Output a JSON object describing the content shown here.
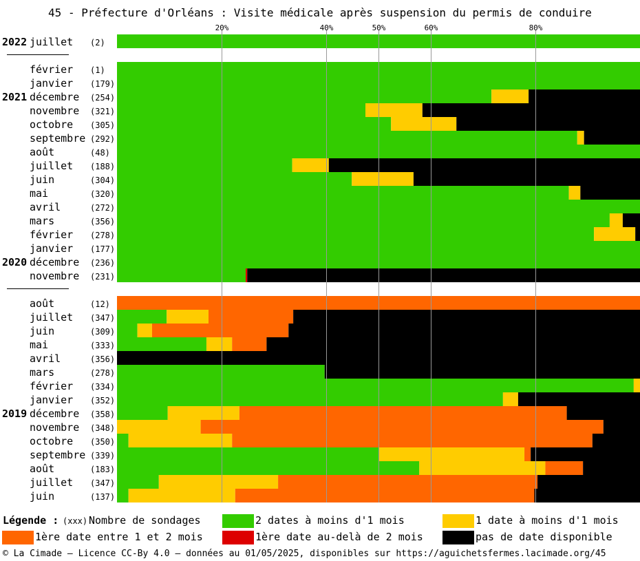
{
  "colors": {
    "green": "#33cc00",
    "yellow": "#ffcc00",
    "orange": "#ff6600",
    "red": "#dd0000",
    "black": "#000000",
    "grid": "#999999"
  },
  "legend": {
    "title": "Légende :",
    "count_hint": "(xxx)",
    "count_label": "Nombre de sondages",
    "items": [
      {
        "key": "green",
        "label": "2 dates à moins d'1 mois"
      },
      {
        "key": "yellow",
        "label": "1 date à moins d'1 mois"
      },
      {
        "key": "orange",
        "label": "1ère date entre 1 et 2 mois"
      },
      {
        "key": "red",
        "label": "1ère date au-delà de 2 mois"
      },
      {
        "key": "black",
        "label": "pas de date disponible"
      }
    ]
  },
  "footer": "© La Cimade — Licence CC-By 4.0 — données au 01/05/2025, disponibles sur https://aguichetsfermes.lacimade.org/45",
  "chart_data": {
    "type": "bar",
    "orientation": "horizontal",
    "stacked": true,
    "unit": "percent",
    "title": "45 - Préfecture d'Orléans : Visite médicale après suspension du permis de conduire",
    "x_ticks": [
      20,
      40,
      50,
      60,
      80
    ],
    "xlim": [
      0,
      100
    ],
    "segment_order": [
      "green",
      "yellow",
      "orange",
      "red",
      "black"
    ],
    "rows": [
      {
        "year": "2022",
        "month": "juillet",
        "count": 2,
        "green": 100,
        "yellow": 0,
        "orange": 0,
        "red": 0,
        "black": 0
      },
      {
        "separator": true
      },
      {
        "month": "février",
        "count": 1,
        "green": 100,
        "yellow": 0,
        "orange": 0,
        "red": 0,
        "black": 0
      },
      {
        "month": "janvier",
        "count": 179,
        "green": 100,
        "yellow": 0,
        "orange": 0,
        "red": 0,
        "black": 0
      },
      {
        "year": "2021",
        "month": "décembre",
        "count": 254,
        "green": 71.6,
        "yellow": 7.1,
        "orange": 0,
        "red": 0,
        "black": 21.3
      },
      {
        "month": "novembre",
        "count": 321,
        "green": 47.5,
        "yellow": 10.9,
        "orange": 0,
        "red": 0,
        "black": 41.6
      },
      {
        "month": "octobre",
        "count": 305,
        "green": 52.4,
        "yellow": 12.5,
        "orange": 0,
        "red": 0,
        "black": 35.1
      },
      {
        "month": "septembre",
        "count": 292,
        "green": 88.0,
        "yellow": 1.3,
        "orange": 0,
        "red": 0,
        "black": 10.7
      },
      {
        "month": "août",
        "count": 48,
        "green": 100,
        "yellow": 0,
        "orange": 0,
        "red": 0,
        "black": 0
      },
      {
        "month": "juillet",
        "count": 188,
        "green": 33.5,
        "yellow": 7.0,
        "orange": 0,
        "red": 0,
        "black": 59.5
      },
      {
        "month": "juin",
        "count": 304,
        "green": 44.9,
        "yellow": 11.8,
        "orange": 0,
        "red": 0,
        "black": 43.3
      },
      {
        "month": "mai",
        "count": 320,
        "green": 86.4,
        "yellow": 2.2,
        "orange": 0,
        "red": 0,
        "black": 11.4
      },
      {
        "month": "avril",
        "count": 272,
        "green": 100,
        "yellow": 0,
        "orange": 0,
        "red": 0,
        "black": 0
      },
      {
        "month": "mars",
        "count": 356,
        "green": 94.2,
        "yellow": 2.5,
        "orange": 0,
        "red": 0,
        "black": 3.3
      },
      {
        "month": "février",
        "count": 278,
        "green": 91.2,
        "yellow": 7.9,
        "orange": 0,
        "red": 0,
        "black": 0.9
      },
      {
        "month": "janvier",
        "count": 177,
        "green": 100,
        "yellow": 0,
        "orange": 0,
        "red": 0,
        "black": 0
      },
      {
        "year": "2020",
        "month": "décembre",
        "count": 236,
        "green": 100,
        "yellow": 0,
        "orange": 0,
        "red": 0,
        "black": 0
      },
      {
        "month": "novembre",
        "count": 231,
        "green": 24.6,
        "yellow": 0,
        "orange": 0,
        "red": 0.3,
        "black": 75.1
      },
      {
        "separator": true
      },
      {
        "month": "août",
        "count": 12,
        "green": 0,
        "yellow": 0,
        "orange": 100,
        "red": 0,
        "black": 0
      },
      {
        "month": "juillet",
        "count": 347,
        "green": 9.5,
        "yellow": 8.0,
        "orange": 16.2,
        "red": 0,
        "black": 66.3
      },
      {
        "month": "juin",
        "count": 309,
        "green": 3.9,
        "yellow": 2.8,
        "orange": 26.1,
        "red": 0,
        "black": 67.2
      },
      {
        "month": "mai",
        "count": 333,
        "green": 17.1,
        "yellow": 4.9,
        "orange": 6.6,
        "red": 0,
        "black": 71.4
      },
      {
        "month": "avril",
        "count": 356,
        "green": 0,
        "yellow": 0,
        "orange": 0,
        "red": 0,
        "black": 100
      },
      {
        "month": "mars",
        "count": 278,
        "green": 39.7,
        "yellow": 0,
        "orange": 0,
        "red": 0,
        "black": 60.3
      },
      {
        "month": "février",
        "count": 334,
        "green": 98.8,
        "yellow": 1.2,
        "orange": 0,
        "red": 0,
        "black": 0
      },
      {
        "month": "janvier",
        "count": 352,
        "green": 73.8,
        "yellow": 2.9,
        "orange": 0,
        "red": 0,
        "black": 23.3
      },
      {
        "year": "2019",
        "month": "décembre",
        "count": 358,
        "green": 9.7,
        "yellow": 13.7,
        "orange": 62.6,
        "red": 0,
        "black": 14.0
      },
      {
        "month": "novembre",
        "count": 348,
        "green": 0,
        "yellow": 16.0,
        "orange": 77.0,
        "red": 0,
        "black": 7.0
      },
      {
        "month": "octobre",
        "count": 350,
        "green": 2.2,
        "yellow": 19.8,
        "orange": 68.9,
        "red": 0,
        "black": 9.1
      },
      {
        "month": "septembre",
        "count": 339,
        "green": 50.0,
        "yellow": 27.9,
        "orange": 1.2,
        "red": 0,
        "black": 20.9
      },
      {
        "month": "août",
        "count": 183,
        "green": 57.8,
        "yellow": 24.1,
        "orange": 7.2,
        "red": 0,
        "black": 10.9
      },
      {
        "month": "juillet",
        "count": 347,
        "green": 8.0,
        "yellow": 22.8,
        "orange": 49.6,
        "red": 0,
        "black": 19.6
      },
      {
        "month": "juin",
        "count": 137,
        "green": 2.2,
        "yellow": 20.4,
        "orange": 57.2,
        "red": 0,
        "black": 20.2
      }
    ]
  }
}
